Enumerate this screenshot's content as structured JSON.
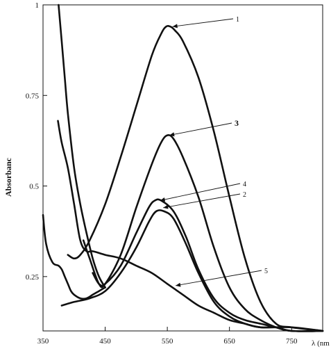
{
  "chart_data": {
    "type": "line",
    "title": "",
    "xlabel": "λ (nm",
    "ylabel": "Absorbanc",
    "xlim": [
      350,
      800
    ],
    "ylim": [
      0.1,
      1.0
    ],
    "grid": false,
    "x_ticks": [
      350,
      450,
      550,
      650,
      750
    ],
    "y_ticks": [
      0.25,
      0.5,
      0.75,
      1
    ],
    "x_tick_labels": [
      "350",
      "450",
      "550",
      "650",
      "750"
    ],
    "y_tick_labels": [
      "0.25",
      "0.5",
      "0.75",
      "1"
    ],
    "series": [
      {
        "name": "1",
        "x": [
          390,
          400,
          410,
          425,
          450,
          475,
          500,
          525,
          540,
          548,
          555,
          562,
          575,
          600,
          625,
          650,
          675,
          700,
          725,
          750,
          800
        ],
        "y": [
          0.31,
          0.3,
          0.31,
          0.35,
          0.45,
          0.58,
          0.72,
          0.86,
          0.92,
          0.94,
          0.94,
          0.93,
          0.9,
          0.8,
          0.65,
          0.47,
          0.3,
          0.18,
          0.12,
          0.11,
          0.1
        ]
      },
      {
        "name": "2",
        "x": [
          380,
          400,
          425,
          450,
          475,
          500,
          520,
          532,
          545,
          560,
          580,
          600,
          625,
          650,
          675,
          700,
          725,
          750,
          800
        ],
        "y": [
          0.17,
          0.18,
          0.19,
          0.21,
          0.26,
          0.33,
          0.4,
          0.43,
          0.43,
          0.41,
          0.34,
          0.26,
          0.18,
          0.14,
          0.12,
          0.11,
          0.11,
          0.1,
          0.1
        ]
      },
      {
        "name": "3",
        "x": [
          415,
          425,
          440,
          450,
          475,
          500,
          525,
          540,
          550,
          560,
          575,
          600,
          625,
          650,
          675,
          700,
          725,
          750,
          800
        ],
        "y": [
          0.35,
          0.3,
          0.23,
          0.23,
          0.31,
          0.44,
          0.56,
          0.62,
          0.64,
          0.63,
          0.58,
          0.47,
          0.33,
          0.22,
          0.16,
          0.13,
          0.11,
          0.1,
          0.1
        ]
      },
      {
        "name": "4",
        "x": [
          430,
          440,
          450,
          475,
          500,
          520,
          530,
          540,
          560,
          580,
          600,
          625,
          650,
          675,
          700,
          725,
          750,
          800
        ],
        "y": [
          0.26,
          0.23,
          0.23,
          0.28,
          0.37,
          0.44,
          0.46,
          0.46,
          0.43,
          0.36,
          0.27,
          0.19,
          0.15,
          0.13,
          0.12,
          0.11,
          0.1,
          0.1
        ]
      },
      {
        "name": "5",
        "x": [
          374,
          380,
          390,
          400,
          410,
          420,
          430,
          450,
          475,
          500,
          525,
          550,
          575,
          600,
          625,
          650,
          675,
          700,
          750,
          800
        ],
        "y": [
          0.68,
          0.62,
          0.55,
          0.45,
          0.35,
          0.32,
          0.32,
          0.31,
          0.3,
          0.28,
          0.26,
          0.23,
          0.2,
          0.17,
          0.15,
          0.13,
          0.12,
          0.11,
          0.11,
          0.1
        ]
      },
      {
        "name": "",
        "x": [
          350,
          355,
          365,
          375,
          380,
          385,
          390,
          395,
          400,
          410,
          420,
          430,
          440,
          450
        ],
        "y": [
          0.42,
          0.34,
          0.29,
          0.28,
          0.27,
          0.25,
          0.23,
          0.21,
          0.2,
          0.19,
          0.19,
          0.2,
          0.21,
          0.22
        ]
      },
      {
        "name": "",
        "x": [
          375,
          380,
          385,
          390,
          400,
          410,
          420,
          430,
          440,
          450
        ],
        "y": [
          1.0,
          0.9,
          0.8,
          0.7,
          0.55,
          0.45,
          0.37,
          0.3,
          0.25,
          0.22
        ]
      }
    ],
    "annotations": [
      {
        "label": "1",
        "series": "1",
        "x": 555,
        "y": 0.94
      },
      {
        "label": "3",
        "series": "3",
        "x": 550,
        "y": 0.64
      },
      {
        "label": "4",
        "series": "4",
        "x": 535,
        "y": 0.46
      },
      {
        "label": "2",
        "series": "2",
        "x": 540,
        "y": 0.44
      },
      {
        "label": "5",
        "series": "5",
        "x": 560,
        "y": 0.225
      }
    ]
  }
}
